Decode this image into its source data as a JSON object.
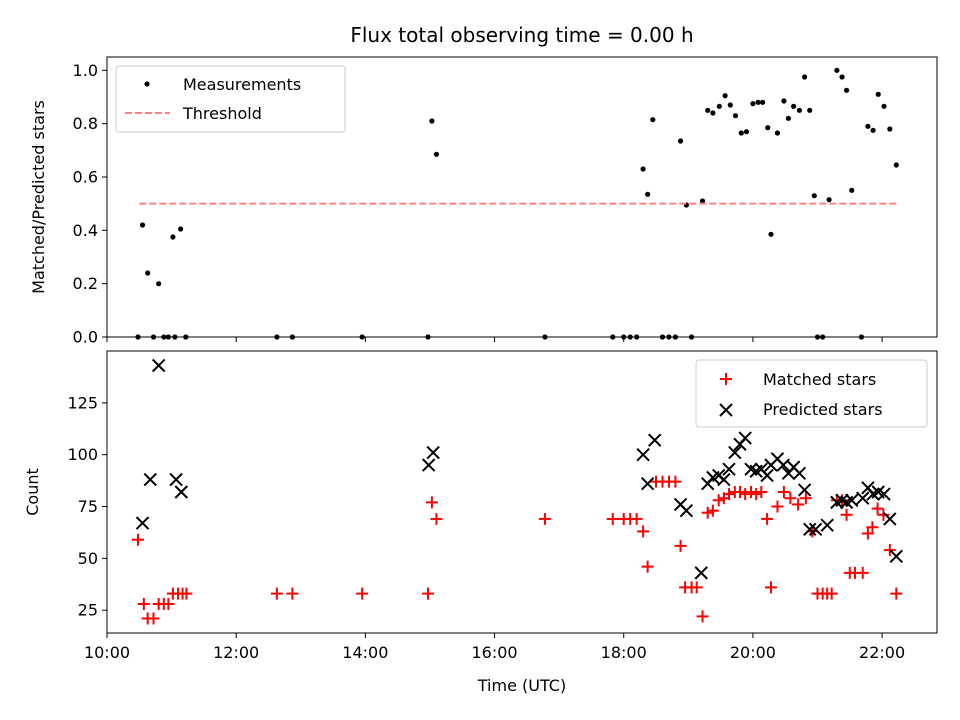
{
  "chart_data": [
    {
      "type": "scatter",
      "title": "Flux total observing time = 0.00 h",
      "xlabel": "",
      "ylabel": "Matched/Predicted stars",
      "xlim": [
        10.0,
        22.85
      ],
      "ylim": [
        0.0,
        1.05
      ],
      "yticks": [
        0.0,
        0.2,
        0.4,
        0.6,
        0.8,
        1.0
      ],
      "yticklabels": [
        "0.0",
        "0.2",
        "0.4",
        "0.6",
        "0.8",
        "1.0"
      ],
      "legend_position": "top-left",
      "series": [
        {
          "name": "Measurements",
          "marker": "dot",
          "color": "#000000",
          "x": [
            10.48,
            10.55,
            10.63,
            10.72,
            10.8,
            10.88,
            10.95,
            11.02,
            11.05,
            11.14,
            11.22,
            12.63,
            12.87,
            13.95,
            14.97,
            15.03,
            15.1,
            16.78,
            17.83,
            18.0,
            18.1,
            18.2,
            18.3,
            18.37,
            18.45,
            18.6,
            18.7,
            18.8,
            18.88,
            18.97,
            19.05,
            19.22,
            19.3,
            19.38,
            19.48,
            19.57,
            19.65,
            19.73,
            19.82,
            19.9,
            20.0,
            20.08,
            20.15,
            20.23,
            20.28,
            20.38,
            20.48,
            20.55,
            20.63,
            20.72,
            20.8,
            20.88,
            20.95,
            21.0,
            21.08,
            21.18,
            21.3,
            21.38,
            21.45,
            21.53,
            21.68,
            21.78,
            21.86,
            21.94,
            22.03,
            22.12,
            22.22
          ],
          "y": [
            0.0,
            0.42,
            0.24,
            0.0,
            0.2,
            0.0,
            0.0,
            0.375,
            0.0,
            0.405,
            0.0,
            0.0,
            0.0,
            0.0,
            0.0,
            0.81,
            0.685,
            0.0,
            0.0,
            0.0,
            0.0,
            0.0,
            0.63,
            0.535,
            0.815,
            0.0,
            0.0,
            0.0,
            0.735,
            0.495,
            0.0,
            0.51,
            0.85,
            0.84,
            0.865,
            0.905,
            0.87,
            0.83,
            0.765,
            0.77,
            0.875,
            0.88,
            0.88,
            0.785,
            0.385,
            0.765,
            0.885,
            0.82,
            0.865,
            0.85,
            0.975,
            0.85,
            0.53,
            0.0,
            0.0,
            0.515,
            1.0,
            0.975,
            0.925,
            0.55,
            0.0,
            0.79,
            0.775,
            0.91,
            0.865,
            0.78,
            0.645
          ]
        },
        {
          "name": "Threshold",
          "marker": "dashed-line",
          "color": "#ff8080",
          "x": [
            10.5,
            22.25
          ],
          "y": [
            0.5,
            0.5
          ]
        }
      ]
    },
    {
      "type": "scatter",
      "title": "",
      "xlabel": "Time (UTC)",
      "ylabel": "Count",
      "xlim": [
        10.0,
        22.85
      ],
      "ylim": [
        14,
        150
      ],
      "yticks": [
        25,
        50,
        75,
        100,
        125
      ],
      "yticklabels": [
        "25",
        "50",
        "75",
        "100",
        "125"
      ],
      "xticks": [
        10,
        12,
        14,
        16,
        18,
        20,
        22
      ],
      "xticklabels": [
        "10:00",
        "12:00",
        "14:00",
        "16:00",
        "18:00",
        "20:00",
        "22:00"
      ],
      "legend_position": "top-right",
      "series": [
        {
          "name": "Matched stars",
          "marker": "plus",
          "color": "#ff0000",
          "x": [
            10.48,
            10.57,
            10.63,
            10.72,
            10.8,
            10.88,
            10.95,
            11.02,
            11.1,
            11.17,
            11.23,
            12.63,
            12.87,
            13.95,
            14.97,
            15.03,
            15.1,
            16.78,
            17.83,
            18.0,
            18.1,
            18.2,
            18.3,
            18.37,
            18.5,
            18.6,
            18.7,
            18.8,
            18.88,
            18.95,
            19.05,
            19.13,
            19.22,
            19.3,
            19.38,
            19.47,
            19.55,
            19.63,
            19.72,
            19.8,
            19.88,
            19.97,
            20.05,
            20.13,
            20.22,
            20.28,
            20.38,
            20.48,
            20.58,
            20.7,
            20.82,
            20.92,
            21.0,
            21.08,
            21.15,
            21.22,
            21.3,
            21.38,
            21.45,
            21.5,
            21.58,
            21.7,
            21.78,
            21.85,
            21.93,
            22.02,
            22.12,
            22.22
          ],
          "y": [
            59,
            28,
            21,
            21,
            28,
            28,
            28,
            33,
            33,
            33,
            33,
            33,
            33,
            33,
            33,
            77,
            69,
            69,
            69,
            69,
            69,
            69,
            63,
            46,
            87,
            87,
            87,
            87,
            56,
            36,
            36,
            36,
            22,
            72,
            73,
            78,
            79,
            81,
            82,
            82,
            81,
            82,
            81,
            82,
            69,
            36,
            75,
            82,
            79,
            76,
            79,
            63,
            33,
            33,
            33,
            33,
            78,
            78,
            71,
            43,
            43,
            43,
            62,
            65,
            74,
            71,
            54,
            33
          ]
        },
        {
          "name": "Predicted stars",
          "marker": "x",
          "color": "#000000",
          "x": [
            10.55,
            10.67,
            10.8,
            11.07,
            11.15,
            14.98,
            15.05,
            18.3,
            18.37,
            18.48,
            18.88,
            18.97,
            19.2,
            19.3,
            19.38,
            19.47,
            19.55,
            19.63,
            19.72,
            19.8,
            19.88,
            19.97,
            20.05,
            20.13,
            20.22,
            20.28,
            20.38,
            20.47,
            20.55,
            20.63,
            20.72,
            20.8,
            20.88,
            20.97,
            21.15,
            21.3,
            21.38,
            21.45,
            21.53,
            21.7,
            21.78,
            21.86,
            21.94,
            22.03,
            22.12,
            22.22
          ],
          "y": [
            67,
            88,
            143,
            88,
            82,
            95,
            101,
            100,
            86,
            107,
            76,
            73,
            43,
            86,
            89,
            90,
            88,
            93,
            101,
            105,
            108,
            93,
            92,
            93,
            90,
            95,
            98,
            95,
            91,
            94,
            91,
            83,
            64,
            64,
            66,
            77,
            78,
            77,
            78,
            79,
            84,
            81,
            82,
            81,
            69,
            51
          ]
        }
      ]
    }
  ]
}
